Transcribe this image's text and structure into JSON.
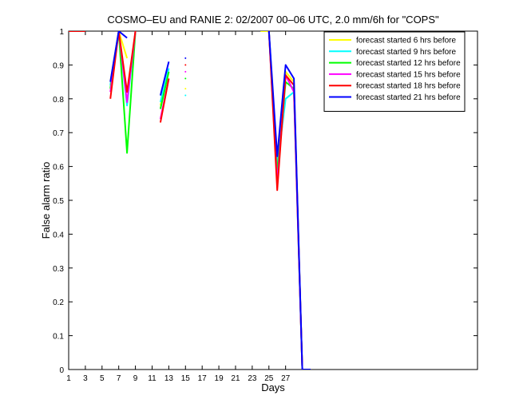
{
  "chart_data": {
    "type": "line",
    "title": "COSMO–EU and RANIE 2: 02/2007 00–06 UTC, 2.0 mm/6h for \"COPS\"",
    "xlabel": "Days",
    "ylabel": "False alarm ratio",
    "xlim": [
      1,
      50
    ],
    "ylim": [
      0,
      1
    ],
    "xticks": [
      1,
      3,
      5,
      7,
      9,
      11,
      13,
      15,
      17,
      19,
      21,
      23,
      25,
      27
    ],
    "xtick_labels": [
      "1",
      "3",
      "5",
      "7",
      "9",
      "11",
      "13",
      "15",
      "17",
      "19",
      "21",
      "23",
      "25",
      "27"
    ],
    "yticks": [
      0,
      0.1,
      0.2,
      0.3,
      0.4,
      0.5,
      0.6,
      0.7,
      0.8,
      0.9,
      1
    ],
    "ytick_labels": [
      "0",
      "0.1",
      "0.2",
      "0.3",
      "0.4",
      "0.5",
      "0.6",
      "0.7",
      "0.8",
      "0.9",
      "1"
    ],
    "grid": false,
    "legend_position": "top-right",
    "series": [
      {
        "name": "forecast started 6 hrs before",
        "color": "#ffff00",
        "segments": [
          [
            [
              1,
              1
            ],
            [
              3,
              1
            ]
          ],
          [
            [
              6,
              0.85
            ],
            [
              7,
              1
            ],
            [
              8,
              0.92
            ]
          ],
          [
            [
              12,
              0.78
            ],
            [
              13,
              0.88
            ]
          ],
          [
            [
              15,
              0.83
            ]
          ],
          [
            [
              24,
              1
            ],
            [
              25,
              1
            ],
            [
              26,
              0.58
            ],
            [
              27,
              0.88
            ],
            [
              28,
              0.85
            ],
            [
              29,
              0
            ]
          ]
        ]
      },
      {
        "name": "forecast started 9 hrs before",
        "color": "#00ffff",
        "segments": [
          [
            [
              1,
              1
            ],
            [
              3,
              1
            ]
          ],
          [
            [
              6,
              0.84
            ],
            [
              7,
              1
            ],
            [
              8,
              0.78
            ],
            [
              9,
              1
            ]
          ],
          [
            [
              12,
              0.79
            ],
            [
              13,
              0.89
            ]
          ],
          [
            [
              15,
              0.81
            ]
          ],
          [
            [
              25,
              1
            ],
            [
              26,
              0.6
            ],
            [
              27,
              0.8
            ],
            [
              28,
              0.82
            ],
            [
              29,
              0
            ]
          ]
        ]
      },
      {
        "name": "forecast started 12 hrs before",
        "color": "#00ff00",
        "segments": [
          [
            [
              1,
              1
            ],
            [
              3,
              1
            ]
          ],
          [
            [
              6,
              0.83
            ],
            [
              7,
              1
            ],
            [
              8,
              0.64
            ],
            [
              9,
              1
            ]
          ],
          [
            [
              12,
              0.77
            ],
            [
              13,
              0.88
            ]
          ],
          [
            [
              15,
              0.86
            ]
          ],
          [
            [
              25,
              1
            ],
            [
              26,
              0.58
            ],
            [
              27,
              0.85
            ],
            [
              28,
              0.83
            ],
            [
              29,
              0
            ]
          ]
        ]
      },
      {
        "name": "forecast started 15 hrs before",
        "color": "#ff00ff",
        "segments": [
          [
            [
              1,
              1
            ],
            [
              3,
              1
            ]
          ],
          [
            [
              6,
              0.82
            ],
            [
              7,
              1
            ],
            [
              8,
              0.79
            ],
            [
              9,
              1
            ]
          ],
          [
            [
              12,
              0.74
            ],
            [
              13,
              0.86
            ]
          ],
          [
            [
              15,
              0.88
            ]
          ],
          [
            [
              25,
              1
            ],
            [
              26,
              0.55
            ],
            [
              27,
              0.87
            ],
            [
              28,
              0.82
            ],
            [
              29,
              0
            ]
          ]
        ]
      },
      {
        "name": "forecast started 18 hrs before",
        "color": "#ff0000",
        "segments": [
          [
            [
              1,
              1
            ],
            [
              3,
              1
            ]
          ],
          [
            [
              6,
              0.8
            ],
            [
              7,
              1
            ],
            [
              8,
              0.82
            ],
            [
              9,
              1
            ]
          ],
          [
            [
              12,
              0.73
            ],
            [
              13,
              0.86
            ]
          ],
          [
            [
              15,
              0.9
            ]
          ],
          [
            [
              25,
              1
            ],
            [
              26,
              0.53
            ],
            [
              27,
              0.87
            ],
            [
              28,
              0.84
            ],
            [
              29,
              0
            ]
          ]
        ]
      },
      {
        "name": "forecast started 21 hrs before",
        "color": "#0000ff",
        "segments": [
          [
            [
              6,
              0.85
            ],
            [
              7,
              1
            ],
            [
              8,
              0.98
            ]
          ],
          [
            [
              12,
              0.81
            ],
            [
              13,
              0.91
            ]
          ],
          [
            [
              15,
              0.92
            ]
          ],
          [
            [
              25,
              1
            ],
            [
              26,
              0.63
            ],
            [
              27,
              0.9
            ],
            [
              28,
              0.86
            ],
            [
              29,
              0
            ],
            [
              30,
              0
            ]
          ]
        ]
      }
    ]
  }
}
